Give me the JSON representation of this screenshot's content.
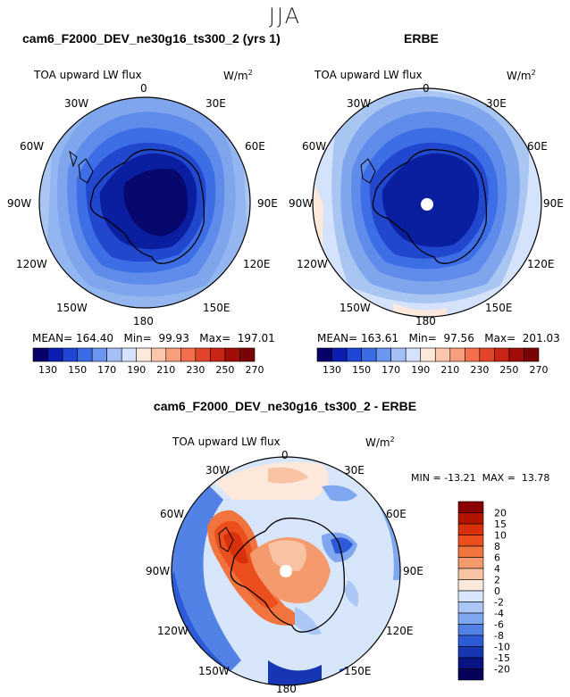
{
  "season": "JJA",
  "panels": [
    {
      "title": "cam6_F2000_DEV_ne30g16_ts300_2 (yrs 1)",
      "variable": "TOA upward LW flux",
      "units": "W/m",
      "units_exp": "2",
      "stats": {
        "mean_label": "MEAN=",
        "mean": "164.40",
        "min_label": "Min=",
        "min": "99.93",
        "max_label": "Max=",
        "max": "197.01"
      }
    },
    {
      "title": "ERBE",
      "variable": "TOA upward LW flux",
      "units": "W/m",
      "units_exp": "2",
      "stats": {
        "mean_label": "MEAN=",
        "mean": "163.61",
        "min_label": "Min=",
        "min": "97.56",
        "max_label": "Max=",
        "max": "201.03"
      }
    }
  ],
  "diff": {
    "title": "cam6_F2000_DEV_ne30g16_ts300_2 - ERBE",
    "variable": "TOA upward LW flux",
    "units": "W/m",
    "units_exp": "2",
    "minmax": {
      "min_label": "MIN =",
      "min": "-13.21",
      "max_label": "MAX =",
      "max": "13.78"
    }
  },
  "lon_labels": {
    "n": "0",
    "ne1": "30E",
    "ne2": "60E",
    "e": "90E",
    "se1": "120E",
    "se2": "150E",
    "s": "180",
    "sw1": "150W",
    "sw2": "120W",
    "w": "90W",
    "nw2": "60W",
    "nw1": "30W"
  },
  "abs_colorbar": {
    "labels": [
      "130",
      "150",
      "170",
      "190",
      "210",
      "230",
      "250",
      "270"
    ],
    "colors": [
      "#08006a",
      "#0a1fb0",
      "#1f46d6",
      "#3a6ce6",
      "#6b95ef",
      "#a3bff5",
      "#d4e2fb",
      "#fde9dc",
      "#fcc6ad",
      "#f99e7c",
      "#f36e4c",
      "#e4442a",
      "#c92516",
      "#a10e0a",
      "#7a0404"
    ]
  },
  "diff_colorbar": {
    "labels": [
      "20",
      "15",
      "10",
      "8",
      "6",
      "4",
      "2",
      "0",
      "-2",
      "-4",
      "-6",
      "-8",
      "-10",
      "-15",
      "-20"
    ],
    "colors": [
      "#8a0000",
      "#b31400",
      "#d8300b",
      "#ea4f1d",
      "#f1733e",
      "#f59a6c",
      "#f8c3a3",
      "#fde9dc",
      "#d8e6fb",
      "#aac7f5",
      "#7ea7ef",
      "#5382e6",
      "#2d5bd8",
      "#1636b3",
      "#0a1383",
      "#05005a"
    ]
  },
  "colors": {
    "ocean_far": "#a9c6f3",
    "ocean_mid": "#7fa6ec",
    "ring_blue": "#3e6ee6",
    "ice_edge": "#2147cf",
    "interior": "#0a1ea0",
    "deep": "#07086e"
  }
}
